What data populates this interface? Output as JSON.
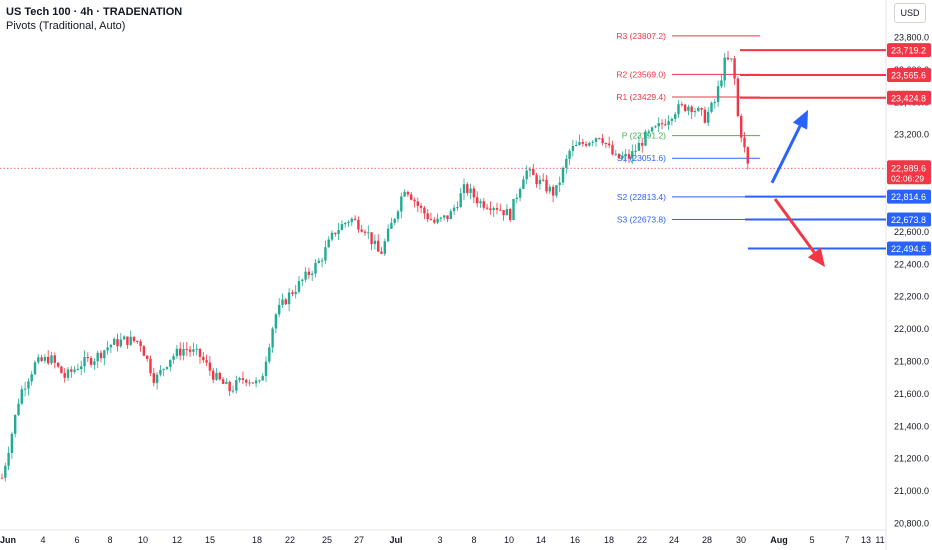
{
  "header": {
    "title": "US Tech 100 · 4h · TRADENATION",
    "subtitle": "Pivots (Traditional, Auto)",
    "currency": "USD"
  },
  "colors": {
    "up": "#22ab94",
    "down": "#f23645",
    "resistance": "#f23645",
    "pivot": "#4caf50",
    "support": "#2962ff",
    "grid_text": "#131722"
  },
  "chart_data": {
    "type": "candlestick",
    "y_axis": {
      "ticks": [
        "23,800.0",
        "23,600.0",
        "23,400.0",
        "23,200.0",
        "22,600.0",
        "22,400.0",
        "22,200.0",
        "22,000.0",
        "21,800.0",
        "21,600.0",
        "21,400.0",
        "21,200.0",
        "21,000.0",
        "20,800.0"
      ],
      "range": [
        20750,
        23950
      ]
    },
    "x_axis": {
      "ticks": [
        "Jun",
        "4",
        "6",
        "8",
        "10",
        "12",
        "15",
        "18",
        "22",
        "25",
        "27",
        "Jul",
        "3",
        "8",
        "10",
        "14",
        "16",
        "18",
        "22",
        "24",
        "28",
        "30",
        "Aug",
        "5",
        "7",
        "11",
        "13"
      ]
    },
    "price_trajectory": [
      [
        2,
        21080
      ],
      [
        10,
        21300
      ],
      [
        20,
        21600
      ],
      [
        35,
        21780
      ],
      [
        50,
        21820
      ],
      [
        65,
        21700
      ],
      [
        80,
        21780
      ],
      [
        95,
        21820
      ],
      [
        110,
        21900
      ],
      [
        125,
        21930
      ],
      [
        140,
        21920
      ],
      [
        155,
        21680
      ],
      [
        170,
        21820
      ],
      [
        185,
        21880
      ],
      [
        200,
        21830
      ],
      [
        215,
        21700
      ],
      [
        230,
        21620
      ],
      [
        245,
        21700
      ],
      [
        260,
        21650
      ],
      [
        275,
        22080
      ],
      [
        288,
        22200
      ],
      [
        300,
        22280
      ],
      [
        320,
        22420
      ],
      [
        335,
        22600
      ],
      [
        350,
        22680
      ],
      [
        365,
        22620
      ],
      [
        380,
        22450
      ],
      [
        395,
        22700
      ],
      [
        405,
        22880
      ],
      [
        420,
        22740
      ],
      [
        435,
        22650
      ],
      [
        450,
        22700
      ],
      [
        465,
        22870
      ],
      [
        480,
        22780
      ],
      [
        495,
        22760
      ],
      [
        510,
        22700
      ],
      [
        525,
        22980
      ],
      [
        540,
        22900
      ],
      [
        555,
        22830
      ],
      [
        570,
        23100
      ],
      [
        585,
        23150
      ],
      [
        600,
        23200
      ],
      [
        615,
        23050
      ],
      [
        630,
        23060
      ],
      [
        645,
        23180
      ],
      [
        660,
        23250
      ],
      [
        675,
        23350
      ],
      [
        690,
        23380
      ],
      [
        705,
        23300
      ],
      [
        715,
        23400
      ],
      [
        725,
        23650
      ],
      [
        733,
        23650
      ],
      [
        738,
        23300
      ],
      [
        743,
        23150
      ],
      [
        748,
        23000
      ],
      [
        751,
        22990
      ]
    ],
    "pivots": [
      {
        "label": "R3",
        "value": 23807.2,
        "text": "R3 (23807.2)"
      },
      {
        "label": "R2",
        "value": 23569.0,
        "text": "R2 (23569.0)"
      },
      {
        "label": "R1",
        "value": 23429.4,
        "text": "R1 (23429.4)"
      },
      {
        "label": "P",
        "value": 23191.2,
        "text": "P (23191.2)"
      },
      {
        "label": "S1",
        "value": 23051.6,
        "text": "S1 (23051.6)"
      },
      {
        "label": "S2",
        "value": 22813.4,
        "text": "S2 (22813.4)"
      },
      {
        "label": "S3",
        "value": 22673.8,
        "text": "S3 (22673.8)"
      }
    ],
    "horizontal_levels": [
      {
        "value": 23719.2,
        "label": "23,719.2",
        "kind": "resistance"
      },
      {
        "value": 23565.6,
        "label": "23,565.6",
        "kind": "resistance"
      },
      {
        "value": 23424.8,
        "label": "23,424.8",
        "kind": "resistance"
      },
      {
        "value": 22814.6,
        "label": "22,814.6",
        "kind": "support"
      },
      {
        "value": 22673.8,
        "label": "22,673.8",
        "kind": "support"
      },
      {
        "value": 22494.6,
        "label": "22,494.6",
        "kind": "support"
      }
    ],
    "current_price": {
      "value": 22989.6,
      "label": "22,989.6",
      "countdown": "02:06:29"
    },
    "annotations": {
      "up_arrow": {
        "from": [
          22900,
          23000
        ],
        "to": [
          23350,
          23100
        ],
        "color": "#2962ff"
      },
      "down_arrow": {
        "from": [
          22800,
          22780
        ],
        "to": [
          22380,
          22420
        ],
        "color": "#f23645"
      }
    }
  }
}
